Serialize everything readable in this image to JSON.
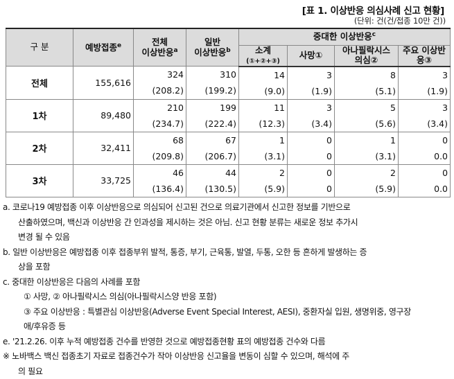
{
  "title": "[표 1. 이상반응 의심사례 신고 현황]",
  "unit": "(단위: 건(건/접종 10만 건))",
  "headers": {
    "category": "구 분",
    "vaccinations": "예방접종",
    "vaccinations_sup": "e",
    "total_line1": "전체",
    "total_line2": "이상반응",
    "total_sup": "a",
    "general_line1": "일반",
    "general_line2": "이상반응",
    "general_sup": "b",
    "serious": "중대한 이상반응",
    "serious_sup": "c",
    "subtotal_line1": "소계",
    "subtotal_line2": "(①+②+③)",
    "death": "사망①",
    "anaphylaxis_line1": "아나필락시스",
    "anaphylaxis_line2": "의심②",
    "major_line1": "주요 이상반",
    "major_line2": "응③"
  },
  "rows": [
    {
      "label": "전체",
      "vaccinations": "155,616",
      "total": "324",
      "total_rate": "(208.2)",
      "general": "310",
      "general_rate": "(199.2)",
      "subtotal": "14",
      "subtotal_rate": "(9.0)",
      "death": "3",
      "death_rate": "(1.9)",
      "anaphylaxis": "8",
      "anaphylaxis_rate": "(5.1)",
      "major": "3",
      "major_rate": "(1.9)"
    },
    {
      "label": "1차",
      "vaccinations": "89,480",
      "total": "210",
      "total_rate": "(234.7)",
      "general": "199",
      "general_rate": "(222.4)",
      "subtotal": "11",
      "subtotal_rate": "(12.3)",
      "death": "3",
      "death_rate": "(3.4)",
      "anaphylaxis": "5",
      "anaphylaxis_rate": "(5.6)",
      "major": "3",
      "major_rate": "(3.4)"
    },
    {
      "label": "2차",
      "vaccinations": "32,411",
      "total": "68",
      "total_rate": "(209.8)",
      "general": "67",
      "general_rate": "(206.7)",
      "subtotal": "1",
      "subtotal_rate": "(3.1)",
      "death": "0",
      "death_rate": "0",
      "anaphylaxis": "1",
      "anaphylaxis_rate": "(3.1)",
      "major": "0",
      "major_rate": "0.0"
    },
    {
      "label": "3차",
      "vaccinations": "33,725",
      "total": "46",
      "total_rate": "(136.4)",
      "general": "44",
      "general_rate": "(130.5)",
      "subtotal": "2",
      "subtotal_rate": "(5.9)",
      "death": "0",
      "death_rate": "0",
      "anaphylaxis": "2",
      "anaphylaxis_rate": "(5.9)",
      "major": "0",
      "major_rate": "0.0"
    }
  ],
  "notes": [
    "a. 코로나19 예방접종 이후 이상반응으로 의심되어 신고된 건으로 의료기관에서 신고한 정보를 기반으로",
    "산출하였으며, 백신과 이상반응 간 인과성을 제시하는 것은 아님. 신고 현황 분류는 새로운 정보 추가시",
    "변경 될 수 있음",
    "b. 일반 이상반응은 예방접종 이후 접종부위 발적, 통증, 부기, 근육통, 발열, 두통, 오한 등 흔하게 발생하는 증",
    "상을 포함",
    "c. 중대한 이상반응은 다음의 사례를 포함",
    "① 사망, ② 아나필락시스 의심(아나필락시스양 반응 포함)",
    "③ 주요 이상반응 : 특별관심 이상반응(Adverse Event Special Interest, AESI), 중환자실 입원, 생명위중, 영구장",
    "애/후유증 등",
    "e. '21.2.26. 이후 누적 예방접종 건수를 반영한 것으로 예방접종현황 표의 예방접종 건수와 다름",
    "※ 노바백스 백신 접종초기 자료로 접종건수가 작아 이상반응 신고율을 변동이 심할 수 있으며, 해석에 주",
    "의 필요"
  ]
}
